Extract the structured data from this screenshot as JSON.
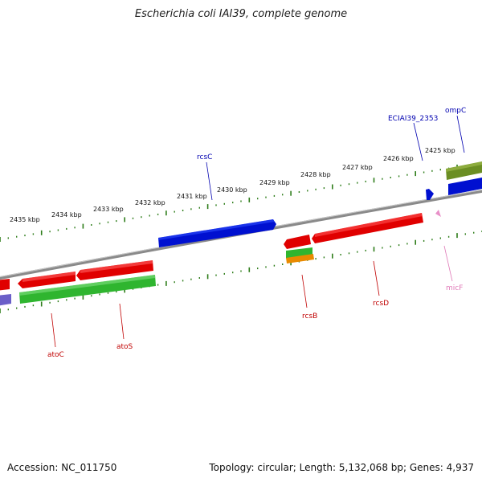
{
  "title": "Escherichia coli IAI39, complete genome",
  "footer": {
    "accession": "Accession: NC_011750",
    "topology": "Topology: circular; Length: 5,132,068 bp; Genes: 4,937"
  },
  "colors": {
    "backbone": "#8a8a8a",
    "tick": "#2e7d1a",
    "gene_red": "#e00000",
    "gene_blue": "#0010d0",
    "gene_green": "#2fb52f",
    "gene_olive": "#6b8e23",
    "gene_orange": "#e98a00",
    "gene_violet": "#6a5fc8",
    "gene_pink": "#e890c8",
    "label_red": "#c00000",
    "label_blue": "#0000b0",
    "label_pink": "#e07ab8"
  },
  "kbp_labels": [
    "2425 kbp",
    "2426 kbp",
    "2427 kbp",
    "2428 kbp",
    "2429 kbp",
    "2430 kbp",
    "2431 kbp",
    "2432 kbp",
    "2433 kbp",
    "2434 kbp",
    "2435 kbp"
  ],
  "gene_labels": [
    {
      "name": "ompC",
      "color": "label_blue"
    },
    {
      "name": "ECIAI39_2353",
      "color": "label_blue"
    },
    {
      "name": "rcsC",
      "color": "label_blue"
    },
    {
      "name": "micF",
      "color": "label_pink"
    },
    {
      "name": "rcsD",
      "color": "label_red"
    },
    {
      "name": "rcsB",
      "color": "label_red"
    },
    {
      "name": "atoS",
      "color": "label_red"
    },
    {
      "name": "atoC",
      "color": "label_red"
    }
  ]
}
